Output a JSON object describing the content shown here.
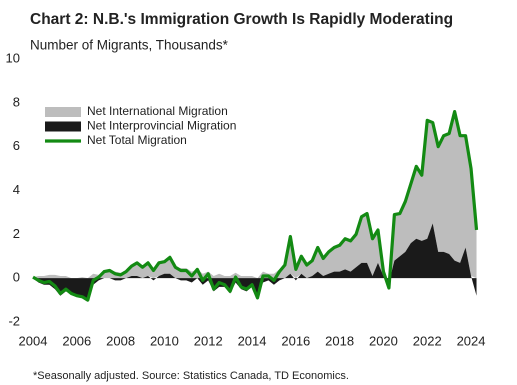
{
  "chart_data": {
    "type": "area-line",
    "title": "Chart 2: N.B.'s Immigration Growth Is Rapidly Moderating",
    "subtitle": "Number of Migrants, Thousands*",
    "note": "*Seasonally adjusted. Source: Statistics Canada, TD Economics.",
    "x": [
      2004,
      2004.25,
      2004.5,
      2004.75,
      2005,
      2005.25,
      2005.5,
      2005.75,
      2006,
      2006.25,
      2006.5,
      2006.75,
      2007,
      2007.25,
      2007.5,
      2007.75,
      2008,
      2008.25,
      2008.5,
      2008.75,
      2009,
      2009.25,
      2009.5,
      2009.75,
      2010,
      2010.25,
      2010.5,
      2010.75,
      2011,
      2011.25,
      2011.5,
      2011.75,
      2012,
      2012.25,
      2012.5,
      2012.75,
      2013,
      2013.25,
      2013.5,
      2013.75,
      2014,
      2014.25,
      2014.5,
      2014.75,
      2015,
      2015.25,
      2015.5,
      2015.75,
      2016,
      2016.25,
      2016.5,
      2016.75,
      2017,
      2017.25,
      2017.5,
      2017.75,
      2018,
      2018.25,
      2018.5,
      2018.75,
      2019,
      2019.25,
      2019.5,
      2019.75,
      2020,
      2020.25,
      2020.5,
      2020.75,
      2021,
      2021.25,
      2021.5,
      2021.75,
      2022,
      2022.25,
      2022.5,
      2022.75,
      2023,
      2023.25,
      2023.5,
      2023.75,
      2024,
      2024.25
    ],
    "series": [
      {
        "name": "Net International Migration",
        "color": "#bdbdbd",
        "kind": "area",
        "values": [
          0.05,
          0.1,
          0.1,
          0.15,
          0.15,
          0.1,
          0.1,
          0,
          0,
          0.05,
          0,
          0.2,
          0.15,
          0.3,
          0.35,
          0.3,
          0.25,
          0.3,
          0.45,
          0.6,
          0.5,
          0.6,
          0.45,
          0.6,
          0.55,
          0.75,
          0.5,
          0.45,
          0.45,
          0.3,
          0.4,
          0.2,
          0.3,
          0.1,
          0.2,
          0.1,
          0.1,
          0.25,
          0.1,
          0.1,
          0.1,
          0,
          0.3,
          0.2,
          0.2,
          0.4,
          0.6,
          1.7,
          0.5,
          0.8,
          0.6,
          0.7,
          1.1,
          0.8,
          1,
          1.1,
          1.2,
          1.4,
          1.4,
          1.5,
          2.1,
          2.25,
          1.7,
          1.5,
          0.2,
          -0.25,
          2.1,
          1.95,
          2.3,
          2.7,
          3.3,
          3,
          5.4,
          4.6,
          4.8,
          5.3,
          5.5,
          6.8,
          5.8,
          5.1,
          4.9,
          3
        ]
      },
      {
        "name": "Net Interprovincial Migration",
        "color": "#1a1a1a",
        "kind": "area",
        "values": [
          0,
          -0.2,
          -0.3,
          -0.3,
          -0.5,
          -0.8,
          -0.6,
          -0.7,
          -0.8,
          -0.9,
          -1,
          -0.3,
          -0.1,
          0,
          0,
          -0.1,
          -0.1,
          0,
          0.1,
          0.1,
          0,
          0.1,
          -0.1,
          0.1,
          0.2,
          0.2,
          0,
          -0.1,
          -0.1,
          -0.2,
          0,
          -0.3,
          -0.1,
          -0.6,
          -0.4,
          -0.4,
          -0.7,
          -0.2,
          -0.5,
          -0.6,
          -0.4,
          -0.9,
          -0.2,
          -0.1,
          -0.3,
          -0.1,
          0,
          0.2,
          -0.1,
          0.2,
          0,
          0.1,
          0.3,
          0.1,
          0.2,
          0.3,
          0.3,
          0.4,
          0.3,
          0.5,
          0.7,
          0.7,
          0.1,
          0.7,
          0.1,
          -0.2,
          0.8,
          1,
          1.2,
          1.6,
          1.8,
          1.7,
          1.8,
          2.5,
          1.2,
          1.2,
          1.1,
          0.8,
          0.7,
          1.4,
          0.1,
          -0.8
        ]
      },
      {
        "name": "Net Total Migration",
        "color": "#138a13",
        "kind": "line",
        "values": [
          0.05,
          -0.1,
          -0.2,
          -0.15,
          -0.35,
          -0.7,
          -0.5,
          -0.7,
          -0.8,
          -0.85,
          -1,
          -0.1,
          0.05,
          0.3,
          0.35,
          0.2,
          0.15,
          0.3,
          0.55,
          0.7,
          0.5,
          0.7,
          0.35,
          0.7,
          0.75,
          0.95,
          0.5,
          0.35,
          0.35,
          0.1,
          0.4,
          -0.1,
          0.2,
          -0.5,
          -0.2,
          -0.3,
          -0.6,
          0.05,
          -0.4,
          -0.5,
          -0.3,
          -0.9,
          0.1,
          0.1,
          -0.1,
          0.3,
          0.6,
          1.9,
          0.4,
          1,
          0.6,
          0.8,
          1.4,
          0.9,
          1.2,
          1.4,
          1.5,
          1.8,
          1.7,
          2,
          2.8,
          2.95,
          1.8,
          2.2,
          0.3,
          -0.45,
          2.9,
          2.95,
          3.5,
          4.3,
          5.1,
          4.7,
          7.2,
          7.1,
          6,
          6.5,
          6.6,
          7.6,
          6.5,
          6.5,
          5,
          2.2
        ]
      }
    ],
    "xlim": [
      2004,
      2024.5
    ],
    "xticks": [
      2004,
      2006,
      2008,
      2010,
      2012,
      2014,
      2016,
      2018,
      2020,
      2022,
      2024
    ],
    "ylim": [
      -2,
      10
    ],
    "yticks": [
      -2,
      0,
      2,
      4,
      6,
      8,
      10
    ],
    "legend": "upper left"
  }
}
